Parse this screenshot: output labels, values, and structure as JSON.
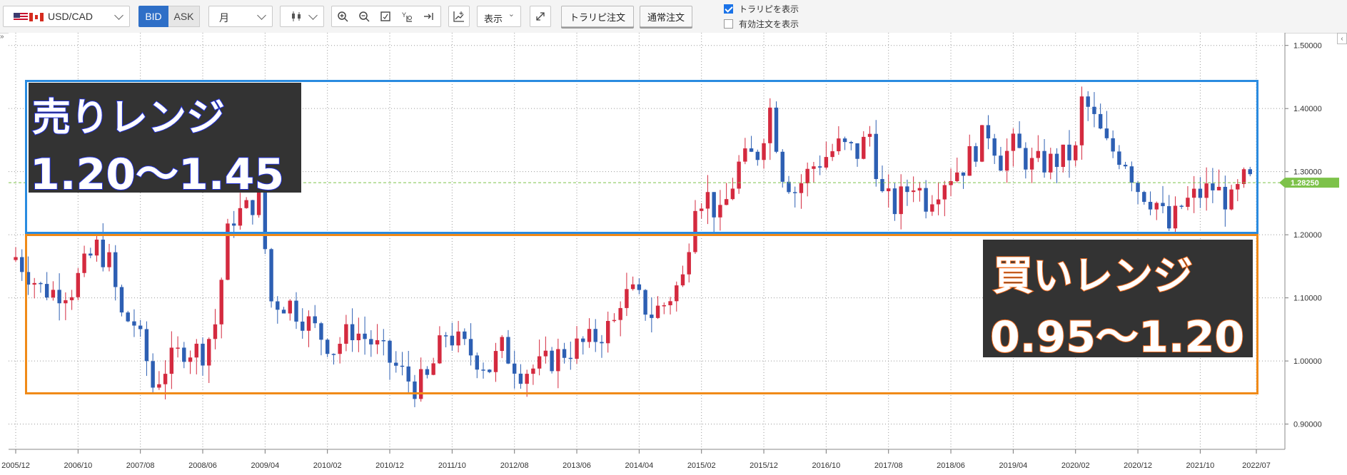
{
  "toolbar": {
    "symbol": "USD/CAD",
    "bid_label": "BID",
    "ask_label": "ASK",
    "timeframe": "月",
    "chart_type_icon": "candlestick-icon",
    "display_label": "表示",
    "trailing_order_label": "トラリピ注文",
    "normal_order_label": "通常注文",
    "show_trailing_label": "トラリピを表示",
    "show_trailing_checked": true,
    "show_active_orders_label": "有効注文を表示",
    "show_active_orders_checked": false
  },
  "overlays": {
    "sell_title": "売りレンジ",
    "sell_range": "1.20〜1.45",
    "buy_title": "買いレンジ",
    "buy_range": "0.95〜1.20"
  },
  "colors": {
    "up": "#d42a3f",
    "down": "#2d5fb3",
    "sell_box": "#2a8be0",
    "buy_box": "#f08a18",
    "current_price": "#7dc24a"
  },
  "chart_data": {
    "type": "candlestick",
    "symbol": "USD/CAD",
    "timeframe": "月",
    "ylim": [
      0.86,
      1.52
    ],
    "y_ticks": [
      "0.90000",
      "1.00000",
      "1.10000",
      "1.20000",
      "1.30000",
      "1.40000",
      "1.50000"
    ],
    "x_ticks": [
      "2005/12",
      "2006/10",
      "2007/08",
      "2008/06",
      "2009/04",
      "2010/02",
      "2010/12",
      "2011/10",
      "2012/08",
      "2013/06",
      "2014/04",
      "2015/02",
      "2015/12",
      "2016/10",
      "2017/08",
      "2018/06",
      "2019/04",
      "2020/02",
      "2020/12",
      "2021/10",
      "2022/07"
    ],
    "current_price": 1.2825,
    "current_price_label": "1.28250",
    "grid": true,
    "anchors": [
      [
        "2005/12",
        1.165
      ],
      [
        "2006/04",
        1.115
      ],
      [
        "2006/06",
        1.11
      ],
      [
        "2006/09",
        1.115
      ],
      [
        "2006/12",
        1.165
      ],
      [
        "2007/01",
        1.18
      ],
      [
        "2007/03",
        1.155
      ],
      [
        "2007/05",
        1.07
      ],
      [
        "2007/07",
        1.06
      ],
      [
        "2007/09",
        1.0
      ],
      [
        "2007/10",
        0.96
      ],
      [
        "2007/12",
        0.99
      ],
      [
        "2008/03",
        1.02
      ],
      [
        "2008/06",
        1.015
      ],
      [
        "2008/08",
        1.06
      ],
      [
        "2008/10",
        1.2
      ],
      [
        "2008/11",
        1.23
      ],
      [
        "2009/01",
        1.24
      ],
      [
        "2009/03",
        1.26
      ],
      [
        "2009/05",
        1.095
      ],
      [
        "2009/08",
        1.09
      ],
      [
        "2009/12",
        1.05
      ],
      [
        "2010/03",
        1.02
      ],
      [
        "2010/06",
        1.05
      ],
      [
        "2010/09",
        1.03
      ],
      [
        "2010/12",
        1.0
      ],
      [
        "2011/04",
        0.96
      ],
      [
        "2011/06",
        0.97
      ],
      [
        "2011/09",
        1.045
      ],
      [
        "2011/12",
        1.02
      ],
      [
        "2012/04",
        0.99
      ],
      [
        "2012/06",
        1.02
      ],
      [
        "2012/09",
        0.985
      ],
      [
        "2012/12",
        0.99
      ],
      [
        "2013/04",
        1.015
      ],
      [
        "2013/08",
        1.03
      ],
      [
        "2013/12",
        1.06
      ],
      [
        "2014/01",
        1.1
      ],
      [
        "2014/03",
        1.105
      ],
      [
        "2014/06",
        1.075
      ],
      [
        "2014/08",
        1.09
      ],
      [
        "2014/11",
        1.13
      ],
      [
        "2015/01",
        1.26
      ],
      [
        "2015/03",
        1.26
      ],
      [
        "2015/05",
        1.225
      ],
      [
        "2015/08",
        1.31
      ],
      [
        "2015/11",
        1.33
      ],
      [
        "2016/01",
        1.4
      ],
      [
        "2016/03",
        1.3
      ],
      [
        "2016/05",
        1.27
      ],
      [
        "2016/08",
        1.31
      ],
      [
        "2016/12",
        1.34
      ],
      [
        "2017/03",
        1.33
      ],
      [
        "2017/05",
        1.36
      ],
      [
        "2017/07",
        1.26
      ],
      [
        "2017/09",
        1.245
      ],
      [
        "2017/12",
        1.285
      ],
      [
        "2018/02",
        1.255
      ],
      [
        "2018/05",
        1.29
      ],
      [
        "2018/08",
        1.31
      ],
      [
        "2018/12",
        1.365
      ],
      [
        "2019/02",
        1.32
      ],
      [
        "2019/04",
        1.34
      ],
      [
        "2019/07",
        1.31
      ],
      [
        "2019/10",
        1.315
      ],
      [
        "2020/02",
        1.33
      ],
      [
        "2020/03",
        1.41
      ],
      [
        "2020/04",
        1.4
      ],
      [
        "2020/07",
        1.34
      ],
      [
        "2020/10",
        1.32
      ],
      [
        "2020/12",
        1.275
      ],
      [
        "2021/03",
        1.25
      ],
      [
        "2021/05",
        1.21
      ],
      [
        "2021/07",
        1.245
      ],
      [
        "2021/09",
        1.26
      ],
      [
        "2021/12",
        1.275
      ],
      [
        "2022/03",
        1.25
      ],
      [
        "2022/05",
        1.285
      ],
      [
        "2022/06",
        1.2825
      ]
    ]
  }
}
